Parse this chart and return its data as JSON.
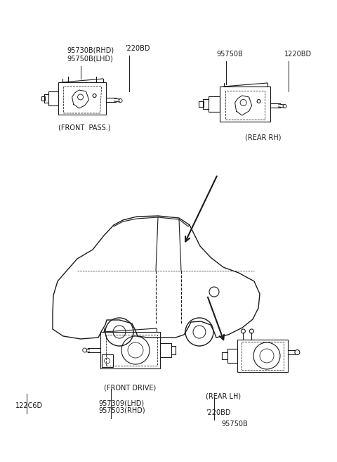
{
  "bg_color": "#ffffff",
  "line_color": "#1a1a1a",
  "text_color": "#1a1a1a",
  "labels": {
    "front_pass_line1": "95730B(RHD)",
    "front_pass_line2": "95750B(LHD)",
    "front_pass_bolt": "'220BD",
    "front_pass_caption": "(FRONT  PASS.)",
    "rear_rh_part": "95750B",
    "rear_rh_bolt": "1220BD",
    "rear_rh_caption": "(REAR RH)",
    "front_drive_bolt": "122C6D",
    "front_drive_line1": "957309(LHD)",
    "front_drive_line2": "957503(RHD)",
    "front_drive_caption": "(FRONT DRIVE)",
    "rear_lh_bolt": "'220BD",
    "rear_lh_part": "95750B",
    "rear_lh_caption": "(REAR LH)"
  },
  "figsize": [
    4.8,
    6.57
  ],
  "dpi": 100
}
